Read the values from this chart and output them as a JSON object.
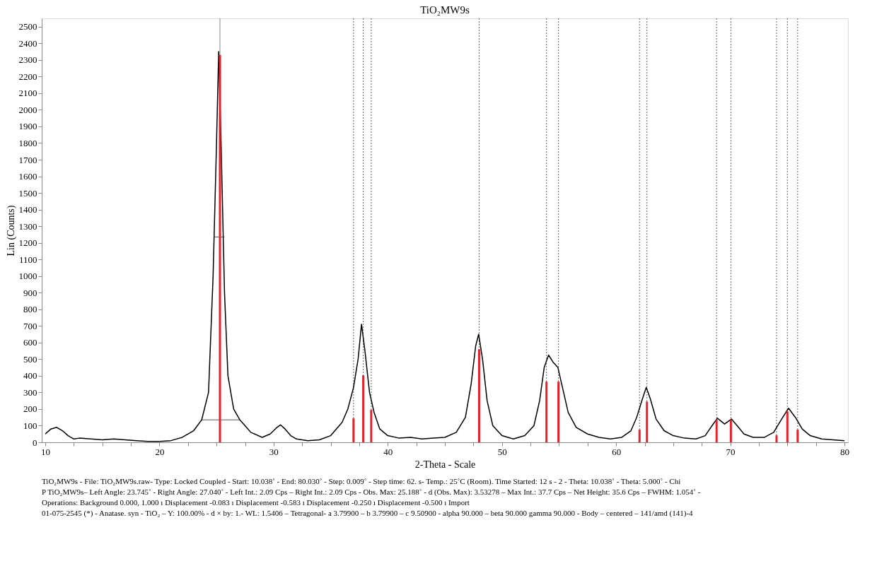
{
  "chart_data": {
    "type": "line",
    "title": "TiO₂MW9s",
    "xlabel": "2-Theta - Scale",
    "ylabel": "Lin (Counts)",
    "xlim": [
      10,
      80
    ],
    "ylim": [
      0,
      2550
    ],
    "xticks": [
      10,
      {
        "value": 12.5,
        "label": null
      },
      {
        "value": 15,
        "label": null
      },
      {
        "value": 17.5,
        "label": null
      },
      20,
      {
        "value": 22.5,
        "label": null
      },
      {
        "value": 25,
        "label": null
      },
      {
        "value": 27.5,
        "label": null
      },
      30,
      {
        "value": 32.5,
        "label": null
      },
      {
        "value": 35,
        "label": null
      },
      {
        "value": 37.5,
        "label": null
      },
      40,
      {
        "value": 42.5,
        "label": null
      },
      {
        "value": 45,
        "label": null
      },
      {
        "value": 47.5,
        "label": null
      },
      50,
      {
        "value": 52.5,
        "label": null
      },
      {
        "value": 55,
        "label": null
      },
      {
        "value": 57.5,
        "label": null
      },
      60,
      {
        "value": 62.5,
        "label": null
      },
      {
        "value": 65,
        "label": null
      },
      {
        "value": 67.5,
        "label": null
      },
      70,
      {
        "value": 72.5,
        "label": null
      },
      {
        "value": 75,
        "label": null
      },
      {
        "value": 77.5,
        "label": null
      },
      80
    ],
    "yticks": [
      0,
      100,
      200,
      300,
      400,
      500,
      600,
      700,
      800,
      900,
      1000,
      1100,
      1200,
      1300,
      1400,
      1500,
      1600,
      1700,
      1800,
      1900,
      2000,
      2100,
      2200,
      2300,
      2400,
      2500
    ],
    "grid": false,
    "legend": false,
    "marker": "none",
    "line_style": "solid",
    "series": [
      {
        "type": "line",
        "color": "#000000",
        "x": [
          10,
          10.5,
          11,
          11.5,
          12,
          12.5,
          13,
          14,
          15,
          16,
          17,
          18,
          19,
          20,
          21,
          22,
          23,
          23.7,
          24.3,
          24.7,
          25.0,
          25.19,
          25.4,
          25.7,
          26.0,
          26.5,
          27.04,
          27.5,
          28,
          29,
          29.7,
          30.3,
          30.6,
          31,
          31.5,
          32,
          33,
          34,
          35,
          36,
          36.5,
          37,
          37.4,
          37.7,
          38.0,
          38.4,
          38.8,
          39.3,
          40,
          41,
          42,
          43,
          44,
          45,
          46,
          46.8,
          47.3,
          47.7,
          47.96,
          48.3,
          48.7,
          49.2,
          50,
          51,
          52,
          52.8,
          53.3,
          53.7,
          54.08,
          54.5,
          54.9,
          55.3,
          55.8,
          56.5,
          57.5,
          58.5,
          59.5,
          60.5,
          61.3,
          61.8,
          62.3,
          62.64,
          63.0,
          63.5,
          64.2,
          65,
          66,
          67,
          67.8,
          68.4,
          68.87,
          69.5,
          70.1,
          70.6,
          71.2,
          72,
          73,
          73.8,
          74.5,
          75.1,
          75.7,
          76.3,
          77,
          78,
          79,
          80
        ],
        "values": [
          50,
          80,
          90,
          70,
          40,
          20,
          25,
          20,
          15,
          20,
          15,
          10,
          5,
          5,
          10,
          30,
          70,
          135,
          300,
          1000,
          1800,
          2350,
          1800,
          900,
          400,
          200,
          135,
          100,
          60,
          30,
          50,
          90,
          105,
          80,
          40,
          20,
          10,
          15,
          40,
          120,
          200,
          330,
          500,
          710,
          550,
          300,
          180,
          80,
          40,
          25,
          30,
          20,
          25,
          30,
          60,
          150,
          350,
          580,
          650,
          500,
          250,
          100,
          40,
          20,
          40,
          100,
          250,
          450,
          525,
          480,
          450,
          330,
          180,
          90,
          50,
          30,
          20,
          30,
          70,
          150,
          260,
          330,
          260,
          140,
          70,
          40,
          25,
          20,
          40,
          100,
          145,
          110,
          140,
          100,
          50,
          30,
          30,
          60,
          140,
          205,
          150,
          80,
          40,
          20,
          15,
          10
        ]
      },
      {
        "type": "line",
        "color": "#555555",
        "x": [
          23.745,
          27.04
        ],
        "values": [
          135,
          135
        ]
      },
      {
        "type": "line",
        "color": "#555555",
        "x": [
          24.8,
          25.7
        ],
        "values": [
          1235,
          1235
        ]
      },
      {
        "type": "bar",
        "color": "#e8202a",
        "x": [
          25.3,
          37.0,
          37.85,
          38.55,
          48.0,
          53.9,
          54.95,
          62.05,
          62.7,
          68.8,
          70.05,
          74.05,
          75.0,
          75.9
        ],
        "values": [
          2330,
          144,
          403,
          195,
          560,
          365,
          365,
          76,
          245,
          135,
          135,
          42,
          186,
          76
        ]
      }
    ],
    "ref_lines": [
      {
        "axis": "x",
        "value": 25.3,
        "color": "#888888",
        "line_style": "solid"
      },
      {
        "axis": "x",
        "value": 37.0,
        "color": "#666666",
        "line_style": "dotted"
      },
      {
        "axis": "x",
        "value": 37.85,
        "color": "#666666",
        "line_style": "dotted"
      },
      {
        "axis": "x",
        "value": 38.55,
        "color": "#666666",
        "line_style": "dotted"
      },
      {
        "axis": "x",
        "value": 48.0,
        "color": "#666666",
        "line_style": "dotted"
      },
      {
        "axis": "x",
        "value": 53.9,
        "color": "#666666",
        "line_style": "dotted"
      },
      {
        "axis": "x",
        "value": 54.95,
        "color": "#666666",
        "line_style": "dotted"
      },
      {
        "axis": "x",
        "value": 62.05,
        "color": "#666666",
        "line_style": "dotted"
      },
      {
        "axis": "x",
        "value": 62.7,
        "color": "#666666",
        "line_style": "dotted"
      },
      {
        "axis": "x",
        "value": 68.8,
        "color": "#666666",
        "line_style": "dotted"
      },
      {
        "axis": "x",
        "value": 70.05,
        "color": "#666666",
        "line_style": "dotted"
      },
      {
        "axis": "x",
        "value": 74.05,
        "color": "#666666",
        "line_style": "dotted"
      },
      {
        "axis": "x",
        "value": 75.0,
        "color": "#666666",
        "line_style": "dotted"
      },
      {
        "axis": "x",
        "value": 75.9,
        "color": "#666666",
        "line_style": "dotted"
      }
    ],
    "annotations": [
      "TiO₂MW9s - File: TiO₂MW9s.raw- Type: Locked Coupled - Start: 10.038˚ - End: 80.030˚ - Step: 0.009˚ - Step time: 62. s- Temp.: 25˚C (Room). Time Started: 12 s - 2 - Theta: 10.038˚ - Theta: 5.000˚ - Chi",
      "P    TiO₂MW9s– Left Angle: 23.745˚ - Right Angle: 27.040˚ - Left Int.: 2.09 Cps – Right Int.: 2.09 Cps - Obs. Max: 25.188˚ - d (Obs. Max): 3.53278 – Max Int.: 37.7 Cps – Net Height: 35.6 Cps – FWHM: 1.054˚ - Operations: Background 0.000, 1.000 ı Displacement -0.083 ı Displacement -0.583 ı Displacement -0.250 ı Displacement -0.500 ı Import",
      "01-075-2545 (*) - Anatase. syn - TiO₂ – Y: 100.00% - d × by: 1.- WL: 1.5406 – Tetragonal- a 3.79900 – b 3.79900 – c 9.50900 - alpha 90.000 – beta 90.000 gamma 90.000 - Body – centered – 141/amd (141)-4"
    ]
  }
}
